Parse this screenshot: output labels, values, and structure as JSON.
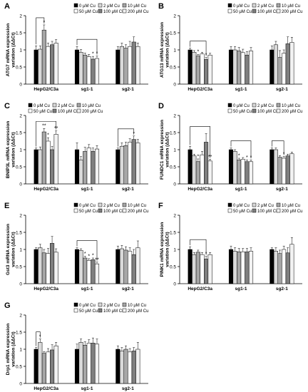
{
  "figure": {
    "legend_labels": [
      "0 μM Cu",
      "2 μM Cu",
      "10 μM Cu",
      "50 μM Cu",
      "100 μM Cu",
      "200 μM Cu"
    ],
    "colors": {
      "treatments": [
        "#000000",
        "#d9d9d9",
        "#a6a6a6",
        "#ffffff",
        "#7f7f7f",
        "#f2f2f2"
      ],
      "stroke": "#000000",
      "axis": "#000000",
      "text": "#000000"
    }
  },
  "chart_data": [
    {
      "type": "bar",
      "panel_label": "A",
      "ylabel": "ATG7 mRNA expression variation (ΔΔCt)",
      "ylim": [
        0,
        2
      ],
      "yticks": [
        0,
        0.5,
        1,
        1.5,
        2
      ],
      "legend_placement": "top-right",
      "categories": [
        "HepG2/C3a",
        "sg1-1",
        "sg2-1"
      ],
      "series": [
        {
          "name": "0 μM Cu",
          "values": [
            1.0,
            1.0,
            1.0
          ],
          "errors": [
            0.12,
            0.1,
            0.1
          ]
        },
        {
          "name": "2 μM Cu",
          "values": [
            1.02,
            0.93,
            1.1
          ],
          "errors": [
            0.1,
            0.08,
            0.1
          ]
        },
        {
          "name": "10 μM Cu",
          "values": [
            1.58,
            0.85,
            1.05
          ],
          "errors": [
            0.15,
            0.06,
            0.1
          ]
        },
        {
          "name": "50 μM Cu",
          "values": [
            1.1,
            0.8,
            1.1
          ],
          "errors": [
            0.1,
            0.07,
            0.15
          ]
        },
        {
          "name": "100 μM Cu",
          "values": [
            1.15,
            0.73,
            1.23
          ],
          "errors": [
            0.1,
            0.08,
            0.15
          ]
        },
        {
          "name": "200 μM Cu",
          "values": [
            1.2,
            0.75,
            1.1
          ],
          "errors": [
            0.1,
            0.07,
            0.1
          ]
        }
      ],
      "significance": [
        {
          "group": 0,
          "from": 0,
          "to": 2,
          "stars": [
            {
              "bar": 2,
              "label": "*"
            }
          ]
        },
        {
          "group": 1,
          "from": 0,
          "to": 5,
          "stars": [
            {
              "bar": 4,
              "label": "*"
            },
            {
              "bar": 5,
              "label": "*"
            }
          ]
        }
      ]
    },
    {
      "type": "bar",
      "panel_label": "B",
      "ylabel": "ATG13 mRNA expression variation (ΔΔCt)",
      "ylim": [
        0,
        2
      ],
      "yticks": [
        0,
        0.5,
        1,
        1.5,
        2
      ],
      "legend_placement": "top-right",
      "categories": [
        "HepG2/C3a",
        "sg1-1",
        "sg2-1"
      ],
      "series": [
        {
          "name": "0 μM Cu",
          "values": [
            1.0,
            1.0,
            1.0
          ],
          "errors": [
            0.05,
            0.1,
            0.12
          ]
        },
        {
          "name": "2 μM Cu",
          "values": [
            0.93,
            1.0,
            1.15
          ],
          "errors": [
            0.05,
            0.1,
            0.1
          ]
        },
        {
          "name": "10 μM Cu",
          "values": [
            0.82,
            0.97,
            0.78
          ],
          "errors": [
            0.05,
            0.1,
            0.2
          ]
        },
        {
          "name": "50 μM Cu",
          "values": [
            0.88,
            0.92,
            0.9
          ],
          "errors": [
            0.05,
            0.1,
            0.1
          ]
        },
        {
          "name": "100 μM Cu",
          "values": [
            0.72,
            0.85,
            1.18
          ],
          "errors": [
            0.06,
            0.1,
            0.2
          ]
        },
        {
          "name": "200 μM Cu",
          "values": [
            0.85,
            0.97,
            1.22
          ],
          "errors": [
            0.05,
            0.1,
            0.15
          ]
        }
      ],
      "significance": [
        {
          "group": 0,
          "from": 0,
          "to": 4,
          "stars": [
            {
              "bar": 2,
              "label": "*"
            },
            {
              "bar": 4,
              "label": "*"
            }
          ]
        }
      ]
    },
    {
      "type": "bar",
      "panel_label": "C",
      "ylabel": "BNIP3L mRNA expression variation (ΔΔCt)",
      "ylim": [
        0,
        2
      ],
      "yticks": [
        0,
        0.5,
        1,
        1.5,
        2
      ],
      "legend_placement": "top-left",
      "categories": [
        "HepG2/C3a",
        "sg1-1",
        "sg2-1"
      ],
      "series": [
        {
          "name": "0 μM Cu",
          "values": [
            1.0,
            1.0,
            1.0
          ],
          "errors": [
            0.05,
            0.2,
            0.05
          ]
        },
        {
          "name": "2 μM Cu",
          "values": [
            1.0,
            0.7,
            1.1
          ],
          "errors": [
            0.08,
            0.1,
            0.1
          ]
        },
        {
          "name": "10 μM Cu",
          "values": [
            1.52,
            0.95,
            1.12
          ],
          "errors": [
            0.1,
            0.12,
            0.1
          ]
        },
        {
          "name": "50 μM Cu",
          "values": [
            1.25,
            1.05,
            1.22
          ],
          "errors": [
            0.1,
            0.1,
            0.1
          ]
        },
        {
          "name": "100 μM Cu",
          "values": [
            1.0,
            0.95,
            1.3
          ],
          "errors": [
            0.1,
            0.1,
            0.1
          ]
        },
        {
          "name": "200 μM Cu",
          "values": [
            1.45,
            1.02,
            1.2
          ],
          "errors": [
            0.1,
            0.1,
            0.1
          ]
        }
      ],
      "significance": [
        {
          "group": 0,
          "from": 0,
          "to": 5,
          "stars": [
            {
              "bar": 2,
              "label": "**"
            },
            {
              "bar": 3,
              "label": "*"
            },
            {
              "bar": 5,
              "label": "**"
            }
          ]
        },
        {
          "group": 2,
          "from": 0,
          "to": 4,
          "stars": [
            {
              "bar": 4,
              "label": "*"
            }
          ]
        }
      ]
    },
    {
      "type": "bar",
      "panel_label": "D",
      "ylabel": "FUNDC1 mRNA expression variation (ΔΔCt)",
      "ylim": [
        0,
        2
      ],
      "yticks": [
        0,
        0.5,
        1,
        1.5,
        2
      ],
      "legend_placement": "top-right",
      "categories": [
        "HepG2/C3a",
        "sg1-1",
        "sg2-1"
      ],
      "series": [
        {
          "name": "0 μM Cu",
          "values": [
            1.0,
            1.0,
            1.0
          ],
          "errors": [
            0.1,
            0.05,
            0.05
          ]
        },
        {
          "name": "2 μM Cu",
          "values": [
            0.82,
            0.95,
            1.0
          ],
          "errors": [
            0.05,
            0.05,
            0.05
          ]
        },
        {
          "name": "10 μM Cu",
          "values": [
            0.65,
            0.7,
            0.78
          ],
          "errors": [
            0.08,
            0.05,
            0.05
          ]
        },
        {
          "name": "50 μM Cu",
          "values": [
            0.85,
            0.72,
            0.75
          ],
          "errors": [
            0.1,
            0.05,
            0.05
          ]
        },
        {
          "name": "100 μM Cu",
          "values": [
            1.22,
            0.65,
            0.82
          ],
          "errors": [
            0.25,
            0.05,
            0.05
          ]
        },
        {
          "name": "200 μM Cu",
          "values": [
            0.67,
            0.65,
            0.88
          ],
          "errors": [
            0.05,
            0.05,
            0.05
          ]
        }
      ],
      "significance": [
        {
          "group": 0,
          "from": 0,
          "to": 5,
          "stars": [
            {
              "bar": 2,
              "label": "*"
            },
            {
              "bar": 5,
              "label": "**"
            }
          ]
        },
        {
          "group": 1,
          "from": 0,
          "to": 5,
          "stars": [
            {
              "bar": 2,
              "label": "*"
            },
            {
              "bar": 4,
              "label": "*"
            },
            {
              "bar": 5,
              "label": "*"
            }
          ]
        },
        {
          "group": 2,
          "from": 0,
          "to": 3,
          "stars": [
            {
              "bar": 3,
              "label": "*"
            }
          ]
        }
      ]
    },
    {
      "type": "bar",
      "panel_label": "E",
      "ylabel": "Gst3 mRNA expression variation (ΔΔCt)",
      "ylim": [
        0,
        2
      ],
      "yticks": [
        0,
        0.5,
        1,
        1.5,
        2
      ],
      "legend_placement": "top-right",
      "categories": [
        "HepG2/C3a",
        "sg1-1",
        "sg2-1"
      ],
      "series": [
        {
          "name": "0 μM Cu",
          "values": [
            1.0,
            1.0,
            1.0
          ],
          "errors": [
            0.05,
            0.05,
            0.1
          ]
        },
        {
          "name": "2 μM Cu",
          "values": [
            1.05,
            0.97,
            1.02
          ],
          "errors": [
            0.1,
            0.05,
            0.1
          ]
        },
        {
          "name": "10 μM Cu",
          "values": [
            0.9,
            0.75,
            0.98
          ],
          "errors": [
            0.1,
            0.05,
            0.1
          ]
        },
        {
          "name": "50 μM Cu",
          "values": [
            0.88,
            0.68,
            0.95
          ],
          "errors": [
            0.15,
            0.05,
            0.1
          ]
        },
        {
          "name": "100 μM Cu",
          "values": [
            1.18,
            0.7,
            0.85
          ],
          "errors": [
            0.2,
            0.05,
            0.15
          ]
        },
        {
          "name": "200 μM Cu",
          "values": [
            0.92,
            0.58,
            1.05
          ],
          "errors": [
            0.1,
            0.05,
            0.2
          ]
        }
      ],
      "significance": [
        {
          "group": 1,
          "from": 0,
          "to": 5,
          "stars": [
            {
              "bar": 2,
              "label": "*"
            },
            {
              "bar": 3,
              "label": "*"
            },
            {
              "bar": 4,
              "label": "*"
            },
            {
              "bar": 5,
              "label": "**"
            }
          ]
        }
      ]
    },
    {
      "type": "bar",
      "panel_label": "F",
      "ylabel": "PINK1 mRNA expression variation (ΔΔCt)",
      "ylim": [
        0,
        2
      ],
      "yticks": [
        0,
        0.5,
        1,
        1.5,
        2
      ],
      "legend_placement": "top-right",
      "categories": [
        "HepG2/C3a",
        "sg1-1",
        "sg2-1"
      ],
      "series": [
        {
          "name": "0 μM Cu",
          "values": [
            1.0,
            1.0,
            1.0
          ],
          "errors": [
            0.08,
            0.1,
            0.05
          ]
        },
        {
          "name": "2 μM Cu",
          "values": [
            0.85,
            0.95,
            0.95
          ],
          "errors": [
            0.06,
            0.1,
            0.1
          ]
        },
        {
          "name": "10 μM Cu",
          "values": [
            0.92,
            0.93,
            0.88
          ],
          "errors": [
            0.06,
            0.1,
            0.1
          ]
        },
        {
          "name": "50 μM Cu",
          "values": [
            0.85,
            0.93,
            1.0
          ],
          "errors": [
            0.06,
            0.1,
            0.1
          ]
        },
        {
          "name": "100 μM Cu",
          "values": [
            0.72,
            0.93,
            0.9
          ],
          "errors": [
            0.08,
            0.1,
            0.15
          ]
        },
        {
          "name": "200 μM Cu",
          "values": [
            0.85,
            0.95,
            1.15
          ],
          "errors": [
            0.06,
            0.1,
            0.2
          ]
        }
      ],
      "significance": [
        {
          "group": 0,
          "from": 0,
          "to": 4,
          "stars": [
            {
              "bar": 4,
              "label": "*"
            }
          ]
        }
      ]
    },
    {
      "type": "bar",
      "panel_label": "G",
      "ylabel": "Drp1 mRNA expression variation (ΔΔCt)",
      "ylim": [
        0,
        2
      ],
      "yticks": [
        0,
        0.5,
        1,
        1.5,
        2
      ],
      "legend_placement": "top-right",
      "categories": [
        "HepG2/C3a",
        "sg1-1",
        "sg2-1"
      ],
      "series": [
        {
          "name": "0 μM Cu",
          "values": [
            1.0,
            1.0,
            1.0
          ],
          "errors": [
            0.05,
            0.15,
            0.1
          ]
        },
        {
          "name": "2 μM Cu",
          "values": [
            1.2,
            1.2,
            0.95
          ],
          "errors": [
            0.1,
            0.1,
            0.1
          ]
        },
        {
          "name": "10 μM Cu",
          "values": [
            0.88,
            1.12,
            1.0
          ],
          "errors": [
            0.05,
            0.1,
            0.1
          ]
        },
        {
          "name": "50 μM Cu",
          "values": [
            0.92,
            1.18,
            0.92
          ],
          "errors": [
            0.1,
            0.1,
            0.1
          ]
        },
        {
          "name": "100 μM Cu",
          "values": [
            0.98,
            1.18,
            0.95
          ],
          "errors": [
            0.15,
            0.15,
            0.1
          ]
        },
        {
          "name": "200 μM Cu",
          "values": [
            1.1,
            1.15,
            1.0
          ],
          "errors": [
            0.1,
            0.15,
            0.2
          ]
        }
      ],
      "significance": [
        {
          "group": 0,
          "from": 0,
          "to": 1,
          "stars": [
            {
              "bar": 1,
              "label": "*"
            }
          ]
        }
      ]
    }
  ]
}
